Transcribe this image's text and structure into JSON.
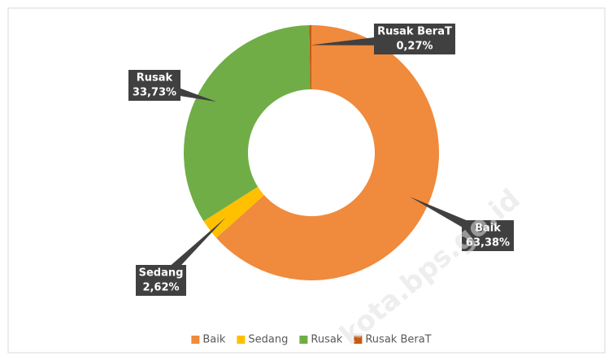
{
  "chart_data": {
    "type": "donut",
    "categories": [
      "Baik",
      "Sedang",
      "Rusak",
      "Rusak BeraT"
    ],
    "values": [
      63.38,
      2.62,
      33.73,
      0.27
    ],
    "value_labels": [
      "63,38%",
      "2,62%",
      "33,73%",
      "0,27%"
    ],
    "colors": [
      "#f08a3c",
      "#ffc000",
      "#70ad47",
      "#c55a11"
    ],
    "legend": "bottom",
    "watermark": "kota.bps.go.id"
  }
}
